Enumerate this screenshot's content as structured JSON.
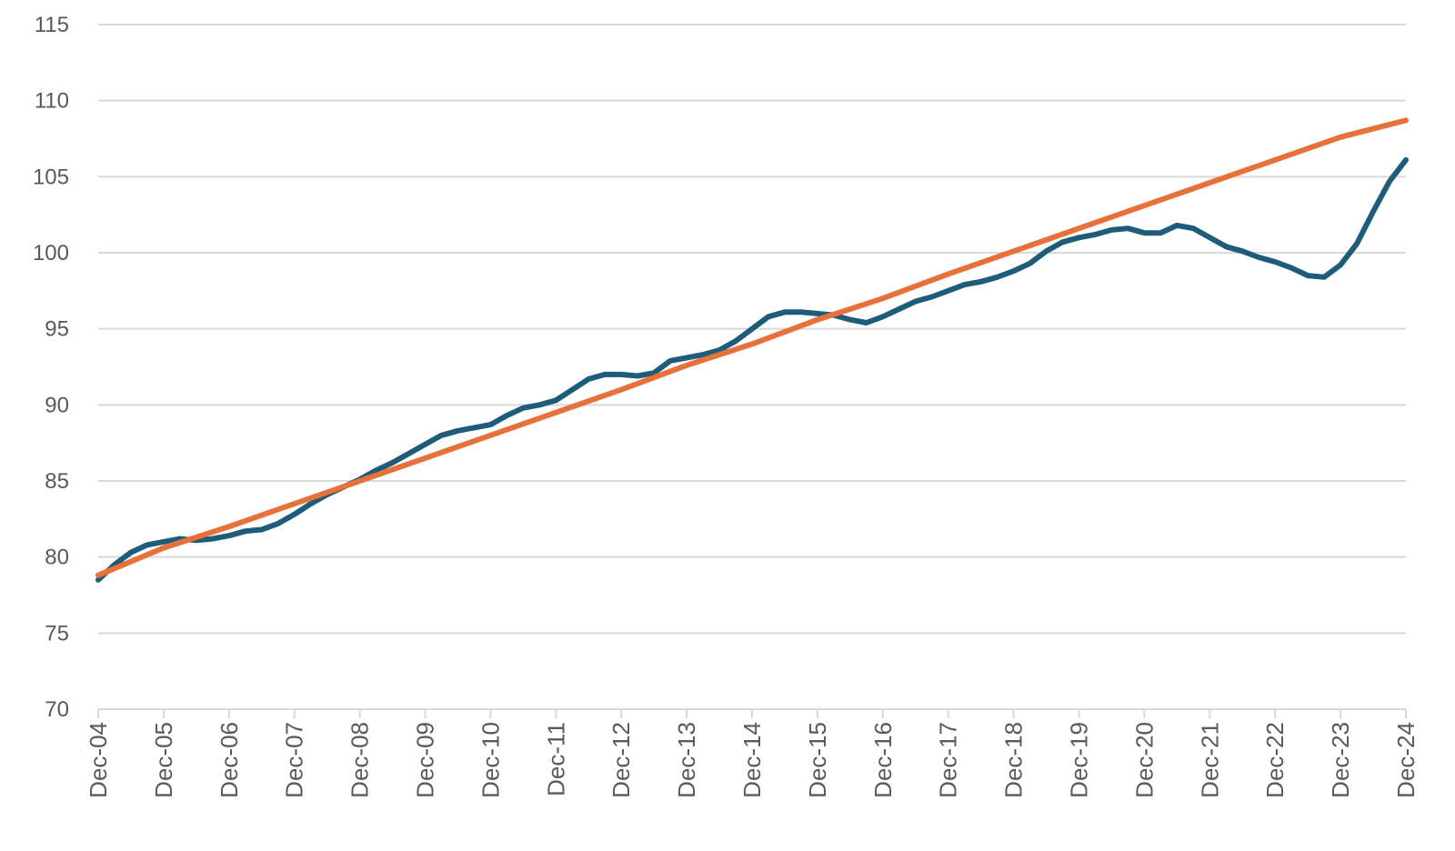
{
  "chart_data": {
    "type": "line",
    "title": "",
    "xlabel": "",
    "ylabel": "",
    "grid": true,
    "legend": "none",
    "x_domain": [
      "2004-12",
      "2024-12"
    ],
    "ylim": [
      70,
      115
    ],
    "y_ticks": [
      70,
      75,
      80,
      85,
      90,
      95,
      100,
      105,
      110,
      115
    ],
    "x_ticks": [
      "Dec-04",
      "Dec-05",
      "Dec-06",
      "Dec-07",
      "Dec-08",
      "Dec-09",
      "Dec-10",
      "Dec-11",
      "Dec-12",
      "Dec-13",
      "Dec-14",
      "Dec-15",
      "Dec-16",
      "Dec-17",
      "Dec-18",
      "Dec-19",
      "Dec-20",
      "Dec-21",
      "Dec-22",
      "Dec-23",
      "Dec-24"
    ],
    "series": [
      {
        "color": "#1f5c7a",
        "points": [
          [
            "2004-12",
            78.5
          ],
          [
            "2005-03",
            79.5
          ],
          [
            "2005-06",
            80.3
          ],
          [
            "2005-09",
            80.8
          ],
          [
            "2005-12",
            81.0
          ],
          [
            "2006-03",
            81.2
          ],
          [
            "2006-06",
            81.1
          ],
          [
            "2006-09",
            81.2
          ],
          [
            "2006-12",
            81.4
          ],
          [
            "2007-03",
            81.7
          ],
          [
            "2007-06",
            81.8
          ],
          [
            "2007-09",
            82.2
          ],
          [
            "2007-12",
            82.8
          ],
          [
            "2008-03",
            83.5
          ],
          [
            "2008-06",
            84.1
          ],
          [
            "2008-09",
            84.6
          ],
          [
            "2008-12",
            85.1
          ],
          [
            "2009-03",
            85.7
          ],
          [
            "2009-06",
            86.2
          ],
          [
            "2009-09",
            86.8
          ],
          [
            "2009-12",
            87.4
          ],
          [
            "2010-03",
            88.0
          ],
          [
            "2010-06",
            88.3
          ],
          [
            "2010-09",
            88.5
          ],
          [
            "2010-12",
            88.7
          ],
          [
            "2011-03",
            89.3
          ],
          [
            "2011-06",
            89.8
          ],
          [
            "2011-09",
            90.0
          ],
          [
            "2011-12",
            90.3
          ],
          [
            "2012-03",
            91.0
          ],
          [
            "2012-06",
            91.7
          ],
          [
            "2012-09",
            92.0
          ],
          [
            "2012-12",
            92.0
          ],
          [
            "2013-03",
            91.9
          ],
          [
            "2013-06",
            92.1
          ],
          [
            "2013-09",
            92.9
          ],
          [
            "2013-12",
            93.1
          ],
          [
            "2014-03",
            93.3
          ],
          [
            "2014-06",
            93.6
          ],
          [
            "2014-09",
            94.2
          ],
          [
            "2014-12",
            95.0
          ],
          [
            "2015-03",
            95.8
          ],
          [
            "2015-06",
            96.1
          ],
          [
            "2015-09",
            96.1
          ],
          [
            "2015-12",
            96.0
          ],
          [
            "2016-03",
            95.9
          ],
          [
            "2016-06",
            95.6
          ],
          [
            "2016-09",
            95.4
          ],
          [
            "2016-12",
            95.8
          ],
          [
            "2017-03",
            96.3
          ],
          [
            "2017-06",
            96.8
          ],
          [
            "2017-09",
            97.1
          ],
          [
            "2017-12",
            97.5
          ],
          [
            "2018-03",
            97.9
          ],
          [
            "2018-06",
            98.1
          ],
          [
            "2018-09",
            98.4
          ],
          [
            "2018-12",
            98.8
          ],
          [
            "2019-03",
            99.3
          ],
          [
            "2019-06",
            100.1
          ],
          [
            "2019-09",
            100.7
          ],
          [
            "2019-12",
            101.0
          ],
          [
            "2020-03",
            101.2
          ],
          [
            "2020-06",
            101.5
          ],
          [
            "2020-09",
            101.6
          ],
          [
            "2020-12",
            101.3
          ],
          [
            "2021-03",
            101.3
          ],
          [
            "2021-06",
            101.8
          ],
          [
            "2021-09",
            101.6
          ],
          [
            "2021-12",
            101.0
          ],
          [
            "2022-03",
            100.4
          ],
          [
            "2022-06",
            100.1
          ],
          [
            "2022-09",
            99.7
          ],
          [
            "2022-12",
            99.4
          ],
          [
            "2023-03",
            99.0
          ],
          [
            "2023-06",
            98.5
          ],
          [
            "2023-09",
            98.4
          ],
          [
            "2023-12",
            99.2
          ],
          [
            "2024-03",
            100.6
          ],
          [
            "2024-06",
            102.7
          ],
          [
            "2024-09",
            104.7
          ],
          [
            "2024-12",
            106.1
          ]
        ]
      },
      {
        "color": "#e8703a",
        "points": [
          [
            "2004-12",
            78.8
          ],
          [
            "2005-12",
            80.6
          ],
          [
            "2006-12",
            82.0
          ],
          [
            "2007-12",
            83.5
          ],
          [
            "2008-12",
            85.0
          ],
          [
            "2009-12",
            86.5
          ],
          [
            "2010-12",
            88.0
          ],
          [
            "2011-12",
            89.5
          ],
          [
            "2012-12",
            91.0
          ],
          [
            "2013-12",
            92.6
          ],
          [
            "2014-12",
            94.0
          ],
          [
            "2015-12",
            95.6
          ],
          [
            "2016-12",
            97.0
          ],
          [
            "2017-12",
            98.6
          ],
          [
            "2018-12",
            100.1
          ],
          [
            "2019-12",
            101.6
          ],
          [
            "2020-12",
            103.1
          ],
          [
            "2021-12",
            104.6
          ],
          [
            "2022-12",
            106.1
          ],
          [
            "2023-12",
            107.6
          ],
          [
            "2024-12",
            108.7
          ]
        ]
      }
    ]
  }
}
